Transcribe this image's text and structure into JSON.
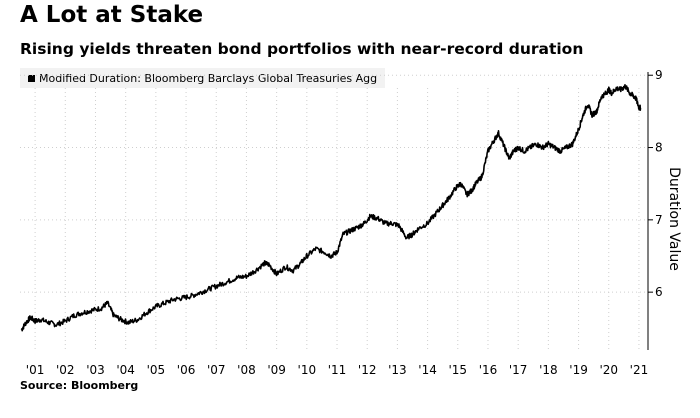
{
  "header": {
    "title": "A Lot at Stake",
    "subtitle": "Rising yields threaten bond portfolios with near-record duration"
  },
  "legend": {
    "label": "Modified Duration: Bloomberg Barclays Global Treasuries Agg"
  },
  "footer": {
    "source": "Source: Bloomberg"
  },
  "colors": {
    "line": "#000000",
    "grid": "#cfcfcf",
    "legend_bg": "#f2f2f2"
  },
  "chart_data": {
    "type": "line",
    "title": "A Lot at Stake",
    "subtitle": "Rising yields threaten bond portfolios with near-record duration",
    "xlabel": "",
    "ylabel": "Duration Value",
    "xlim": [
      2000.5,
      2021.3
    ],
    "ylim": [
      5.2,
      9.1
    ],
    "yticks": [
      6,
      7,
      8,
      9
    ],
    "xticks": [
      2001,
      2002,
      2003,
      2004,
      2005,
      2006,
      2007,
      2008,
      2009,
      2010,
      2011,
      2012,
      2013,
      2014,
      2015,
      2016,
      2017,
      2018,
      2019,
      2020,
      2021
    ],
    "xticklabels": [
      "'01",
      "'02",
      "'03",
      "'04",
      "'05",
      "'06",
      "'07",
      "'08",
      "'09",
      "'10",
      "'11",
      "'12",
      "'13",
      "'14",
      "'15",
      "'16",
      "'17",
      "'18",
      "'19",
      "'20",
      "'21"
    ],
    "grid": true,
    "legend_position": "top-left",
    "series": [
      {
        "name": "Modified Duration: Bloomberg Barclays Global Treasuries Agg",
        "x": [
          2000.55,
          2000.7,
          2000.85,
          2001.0,
          2001.2,
          2001.45,
          2001.7,
          2002.0,
          2002.3,
          2002.6,
          2002.9,
          2003.2,
          2003.4,
          2003.6,
          2003.85,
          2004.1,
          2004.4,
          2004.7,
          2005.0,
          2005.3,
          2005.6,
          2005.9,
          2006.2,
          2006.5,
          2006.8,
          2007.1,
          2007.4,
          2007.7,
          2008.0,
          2008.3,
          2008.6,
          2008.75,
          2009.0,
          2009.3,
          2009.55,
          2009.8,
          2010.0,
          2010.3,
          2010.6,
          2010.8,
          2011.0,
          2011.2,
          2011.45,
          2011.7,
          2011.9,
          2012.1,
          2012.35,
          2012.6,
          2012.85,
          2013.05,
          2013.3,
          2013.5,
          2013.7,
          2014.0,
          2014.3,
          2014.5,
          2014.7,
          2014.95,
          2015.1,
          2015.3,
          2015.45,
          2015.6,
          2015.8,
          2016.0,
          2016.2,
          2016.35,
          2016.55,
          2016.7,
          2016.85,
          2017.0,
          2017.2,
          2017.4,
          2017.6,
          2017.8,
          2018.0,
          2018.2,
          2018.4,
          2018.6,
          2018.8,
          2019.0,
          2019.15,
          2019.3,
          2019.45,
          2019.6,
          2019.75,
          2019.9,
          2020.0,
          2020.1,
          2020.25,
          2020.4,
          2020.55,
          2020.7,
          2020.8,
          2020.9,
          2021.0,
          2021.05
        ],
        "values": [
          5.48,
          5.58,
          5.65,
          5.6,
          5.62,
          5.58,
          5.55,
          5.6,
          5.68,
          5.72,
          5.75,
          5.78,
          5.85,
          5.68,
          5.62,
          5.58,
          5.62,
          5.72,
          5.8,
          5.85,
          5.9,
          5.92,
          5.95,
          6.0,
          6.05,
          6.1,
          6.15,
          6.2,
          6.22,
          6.3,
          6.4,
          6.38,
          6.25,
          6.35,
          6.3,
          6.4,
          6.5,
          6.6,
          6.55,
          6.5,
          6.55,
          6.8,
          6.85,
          6.9,
          6.95,
          7.05,
          7.02,
          6.95,
          6.95,
          6.92,
          6.75,
          6.8,
          6.88,
          6.95,
          7.1,
          7.2,
          7.3,
          7.45,
          7.5,
          7.35,
          7.4,
          7.5,
          7.6,
          7.95,
          8.1,
          8.2,
          8.0,
          7.85,
          7.95,
          8.0,
          7.95,
          8.0,
          8.05,
          8.0,
          8.05,
          8.0,
          7.95,
          8.0,
          8.05,
          8.25,
          8.45,
          8.6,
          8.45,
          8.5,
          8.7,
          8.75,
          8.8,
          8.75,
          8.82,
          8.8,
          8.85,
          8.75,
          8.72,
          8.68,
          8.55,
          8.55
        ]
      }
    ]
  }
}
